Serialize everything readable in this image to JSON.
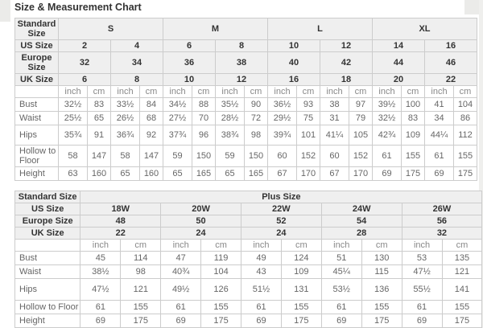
{
  "page": {
    "title": "Size & Measurement Chart"
  },
  "chart_data": [
    {
      "type": "table",
      "name": "standard-size-chart",
      "corner_label": "Standard Size",
      "size_groups": [
        {
          "label": "S",
          "sizes": 2
        },
        {
          "label": "M",
          "sizes": 2
        },
        {
          "label": "L",
          "sizes": 2
        },
        {
          "label": "XL",
          "sizes": 2
        }
      ],
      "size_rows": [
        {
          "label": "US Size",
          "values": [
            "2",
            "4",
            "6",
            "8",
            "10",
            "12",
            "14",
            "16"
          ]
        },
        {
          "label": "Europe Size",
          "values": [
            "32",
            "34",
            "36",
            "38",
            "40",
            "42",
            "44",
            "46"
          ]
        },
        {
          "label": "UK Size",
          "values": [
            "6",
            "8",
            "10",
            "12",
            "16",
            "18",
            "20",
            "22"
          ]
        }
      ],
      "units": [
        "inch",
        "cm"
      ],
      "measure_rows": [
        {
          "label": "Bust",
          "values": [
            "32½",
            "83",
            "33½",
            "84",
            "34½",
            "88",
            "35½",
            "90",
            "36½",
            "93",
            "38",
            "97",
            "39½",
            "100",
            "41",
            "104"
          ]
        },
        {
          "label": "Waist",
          "values": [
            "25½",
            "65",
            "26½",
            "68",
            "27½",
            "70",
            "28½",
            "72",
            "29½",
            "75",
            "31",
            "79",
            "32½",
            "83",
            "34",
            "86"
          ]
        },
        {
          "label": "Hips",
          "values": [
            "35¾",
            "91",
            "36¾",
            "92",
            "37¾",
            "96",
            "38¾",
            "98",
            "39¾",
            "101",
            "41¼",
            "105",
            "42¾",
            "109",
            "44¼",
            "112"
          ]
        },
        {
          "label": "Hollow to Floor",
          "values": [
            "58",
            "147",
            "58",
            "147",
            "59",
            "150",
            "59",
            "150",
            "60",
            "152",
            "60",
            "152",
            "61",
            "155",
            "61",
            "155"
          ]
        },
        {
          "label": "Height",
          "values": [
            "63",
            "160",
            "65",
            "160",
            "65",
            "165",
            "65",
            "165",
            "67",
            "170",
            "67",
            "170",
            "69",
            "175",
            "69",
            "175"
          ]
        }
      ]
    },
    {
      "type": "table",
      "name": "plus-size-chart",
      "corner_label": "Standard Size",
      "size_groups": [
        {
          "label": "Plus Size",
          "sizes": 5
        }
      ],
      "size_rows": [
        {
          "label": "US Size",
          "values": [
            "18W",
            "20W",
            "22W",
            "24W",
            "26W"
          ]
        },
        {
          "label": "Europe Size",
          "values": [
            "48",
            "50",
            "52",
            "54",
            "56"
          ]
        },
        {
          "label": "UK Size",
          "values": [
            "22",
            "24",
            "24",
            "28",
            "32"
          ]
        }
      ],
      "units": [
        "inch",
        "cm"
      ],
      "measure_rows": [
        {
          "label": "Bust",
          "values": [
            "45",
            "114",
            "47",
            "119",
            "49",
            "124",
            "51",
            "130",
            "53",
            "135"
          ]
        },
        {
          "label": "Waist",
          "values": [
            "38½",
            "98",
            "40¾",
            "104",
            "43",
            "109",
            "45¼",
            "115",
            "47½",
            "121"
          ]
        },
        {
          "label": "Hips",
          "values": [
            "47½",
            "121",
            "49½",
            "126",
            "51½",
            "131",
            "53½",
            "136",
            "55½",
            "141"
          ]
        },
        {
          "label": "Hollow to Floor",
          "values": [
            "61",
            "155",
            "61",
            "155",
            "61",
            "155",
            "61",
            "155",
            "61",
            "155"
          ]
        },
        {
          "label": "Height",
          "values": [
            "69",
            "175",
            "69",
            "175",
            "69",
            "175",
            "69",
            "175",
            "69",
            "175"
          ]
        }
      ]
    }
  ]
}
